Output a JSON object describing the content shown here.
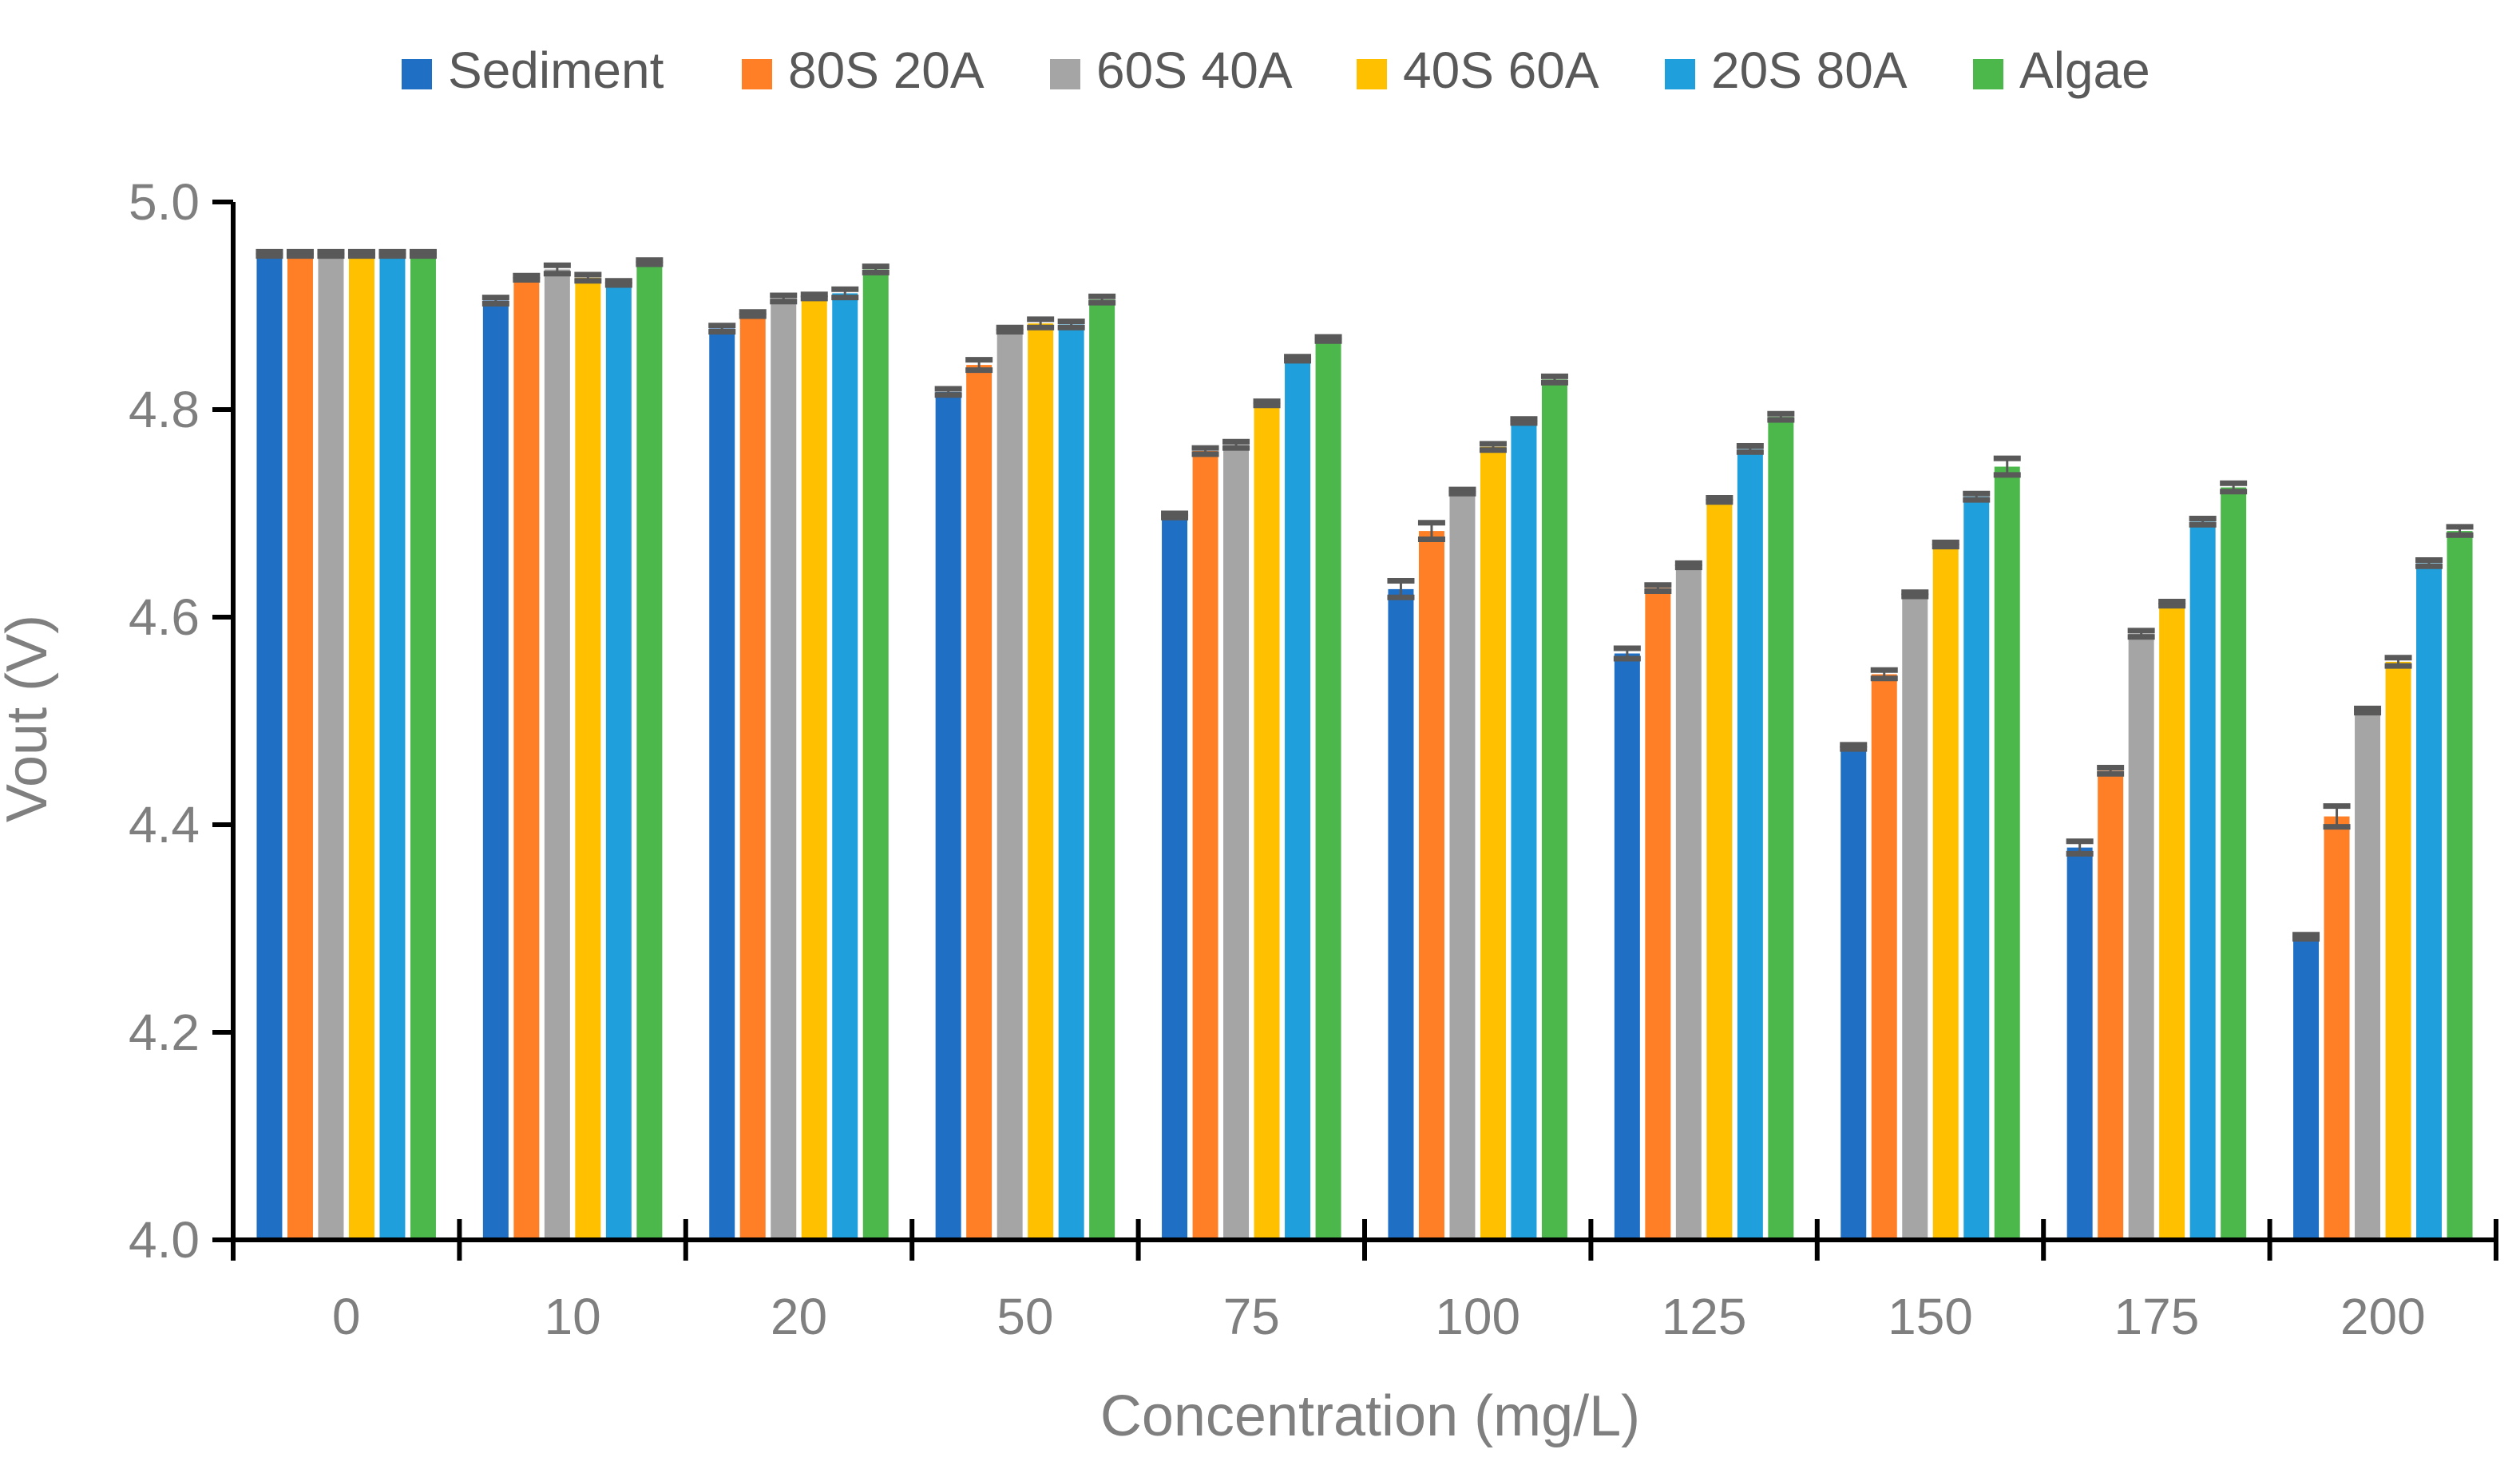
{
  "chart_data": {
    "type": "bar",
    "title": "",
    "xlabel": "Concentration (mg/L)",
    "ylabel": "Vout (V)",
    "ylim": [
      4.0,
      5.0
    ],
    "yticks": [
      4.0,
      4.2,
      4.4,
      4.6,
      4.8,
      5.0
    ],
    "ytick_labels": [
      "4.0",
      "4.2",
      "4.4",
      "4.6",
      "4.8",
      "5.0"
    ],
    "legend_position": "top",
    "categories": [
      "0",
      "10",
      "20",
      "50",
      "75",
      "100",
      "125",
      "150",
      "175",
      "200"
    ],
    "series": [
      {
        "name": "Sediment",
        "color": "#1f6fc5",
        "values": [
          4.95,
          4.905,
          4.878,
          4.817,
          4.698,
          4.627,
          4.565,
          4.475,
          4.378,
          4.292
        ],
        "errors": [
          0.002,
          0.003,
          0.003,
          0.003,
          0.002,
          0.008,
          0.005,
          0.002,
          0.006,
          0.002
        ]
      },
      {
        "name": "80S 20A",
        "color": "#ff7f27",
        "values": [
          4.95,
          4.927,
          4.892,
          4.843,
          4.76,
          4.683,
          4.628,
          4.545,
          4.452,
          4.408
        ],
        "errors": [
          0.002,
          0.002,
          0.002,
          0.005,
          0.003,
          0.008,
          0.003,
          0.004,
          0.003,
          0.01
        ]
      },
      {
        "name": "60S 40A",
        "color": "#a5a5a5",
        "values": [
          4.95,
          4.935,
          4.907,
          4.877,
          4.766,
          4.721,
          4.65,
          4.622,
          4.584,
          4.51
        ],
        "errors": [
          0.002,
          0.004,
          0.003,
          0.002,
          0.003,
          0.002,
          0.002,
          0.002,
          0.003,
          0.002
        ]
      },
      {
        "name": "40S 60A",
        "color": "#ffc000",
        "values": [
          4.95,
          4.927,
          4.909,
          4.883,
          4.806,
          4.764,
          4.713,
          4.67,
          4.613,
          4.557
        ],
        "errors": [
          0.002,
          0.003,
          0.002,
          0.004,
          0.002,
          0.003,
          0.002,
          0.002,
          0.002,
          0.004
        ]
      },
      {
        "name": "20S 80A",
        "color": "#1fa0dc",
        "values": [
          4.95,
          4.922,
          4.912,
          4.882,
          4.849,
          4.789,
          4.762,
          4.716,
          4.692,
          4.652
        ],
        "errors": [
          0.002,
          0.002,
          0.004,
          0.003,
          0.002,
          0.002,
          0.003,
          0.003,
          0.003,
          0.003
        ]
      },
      {
        "name": "Algae",
        "color": "#4cb84c",
        "values": [
          4.95,
          4.942,
          4.935,
          4.906,
          4.868,
          4.829,
          4.793,
          4.745,
          4.725,
          4.683
        ],
        "errors": [
          0.002,
          0.002,
          0.003,
          0.003,
          0.002,
          0.003,
          0.003,
          0.008,
          0.004,
          0.004
        ]
      }
    ]
  }
}
